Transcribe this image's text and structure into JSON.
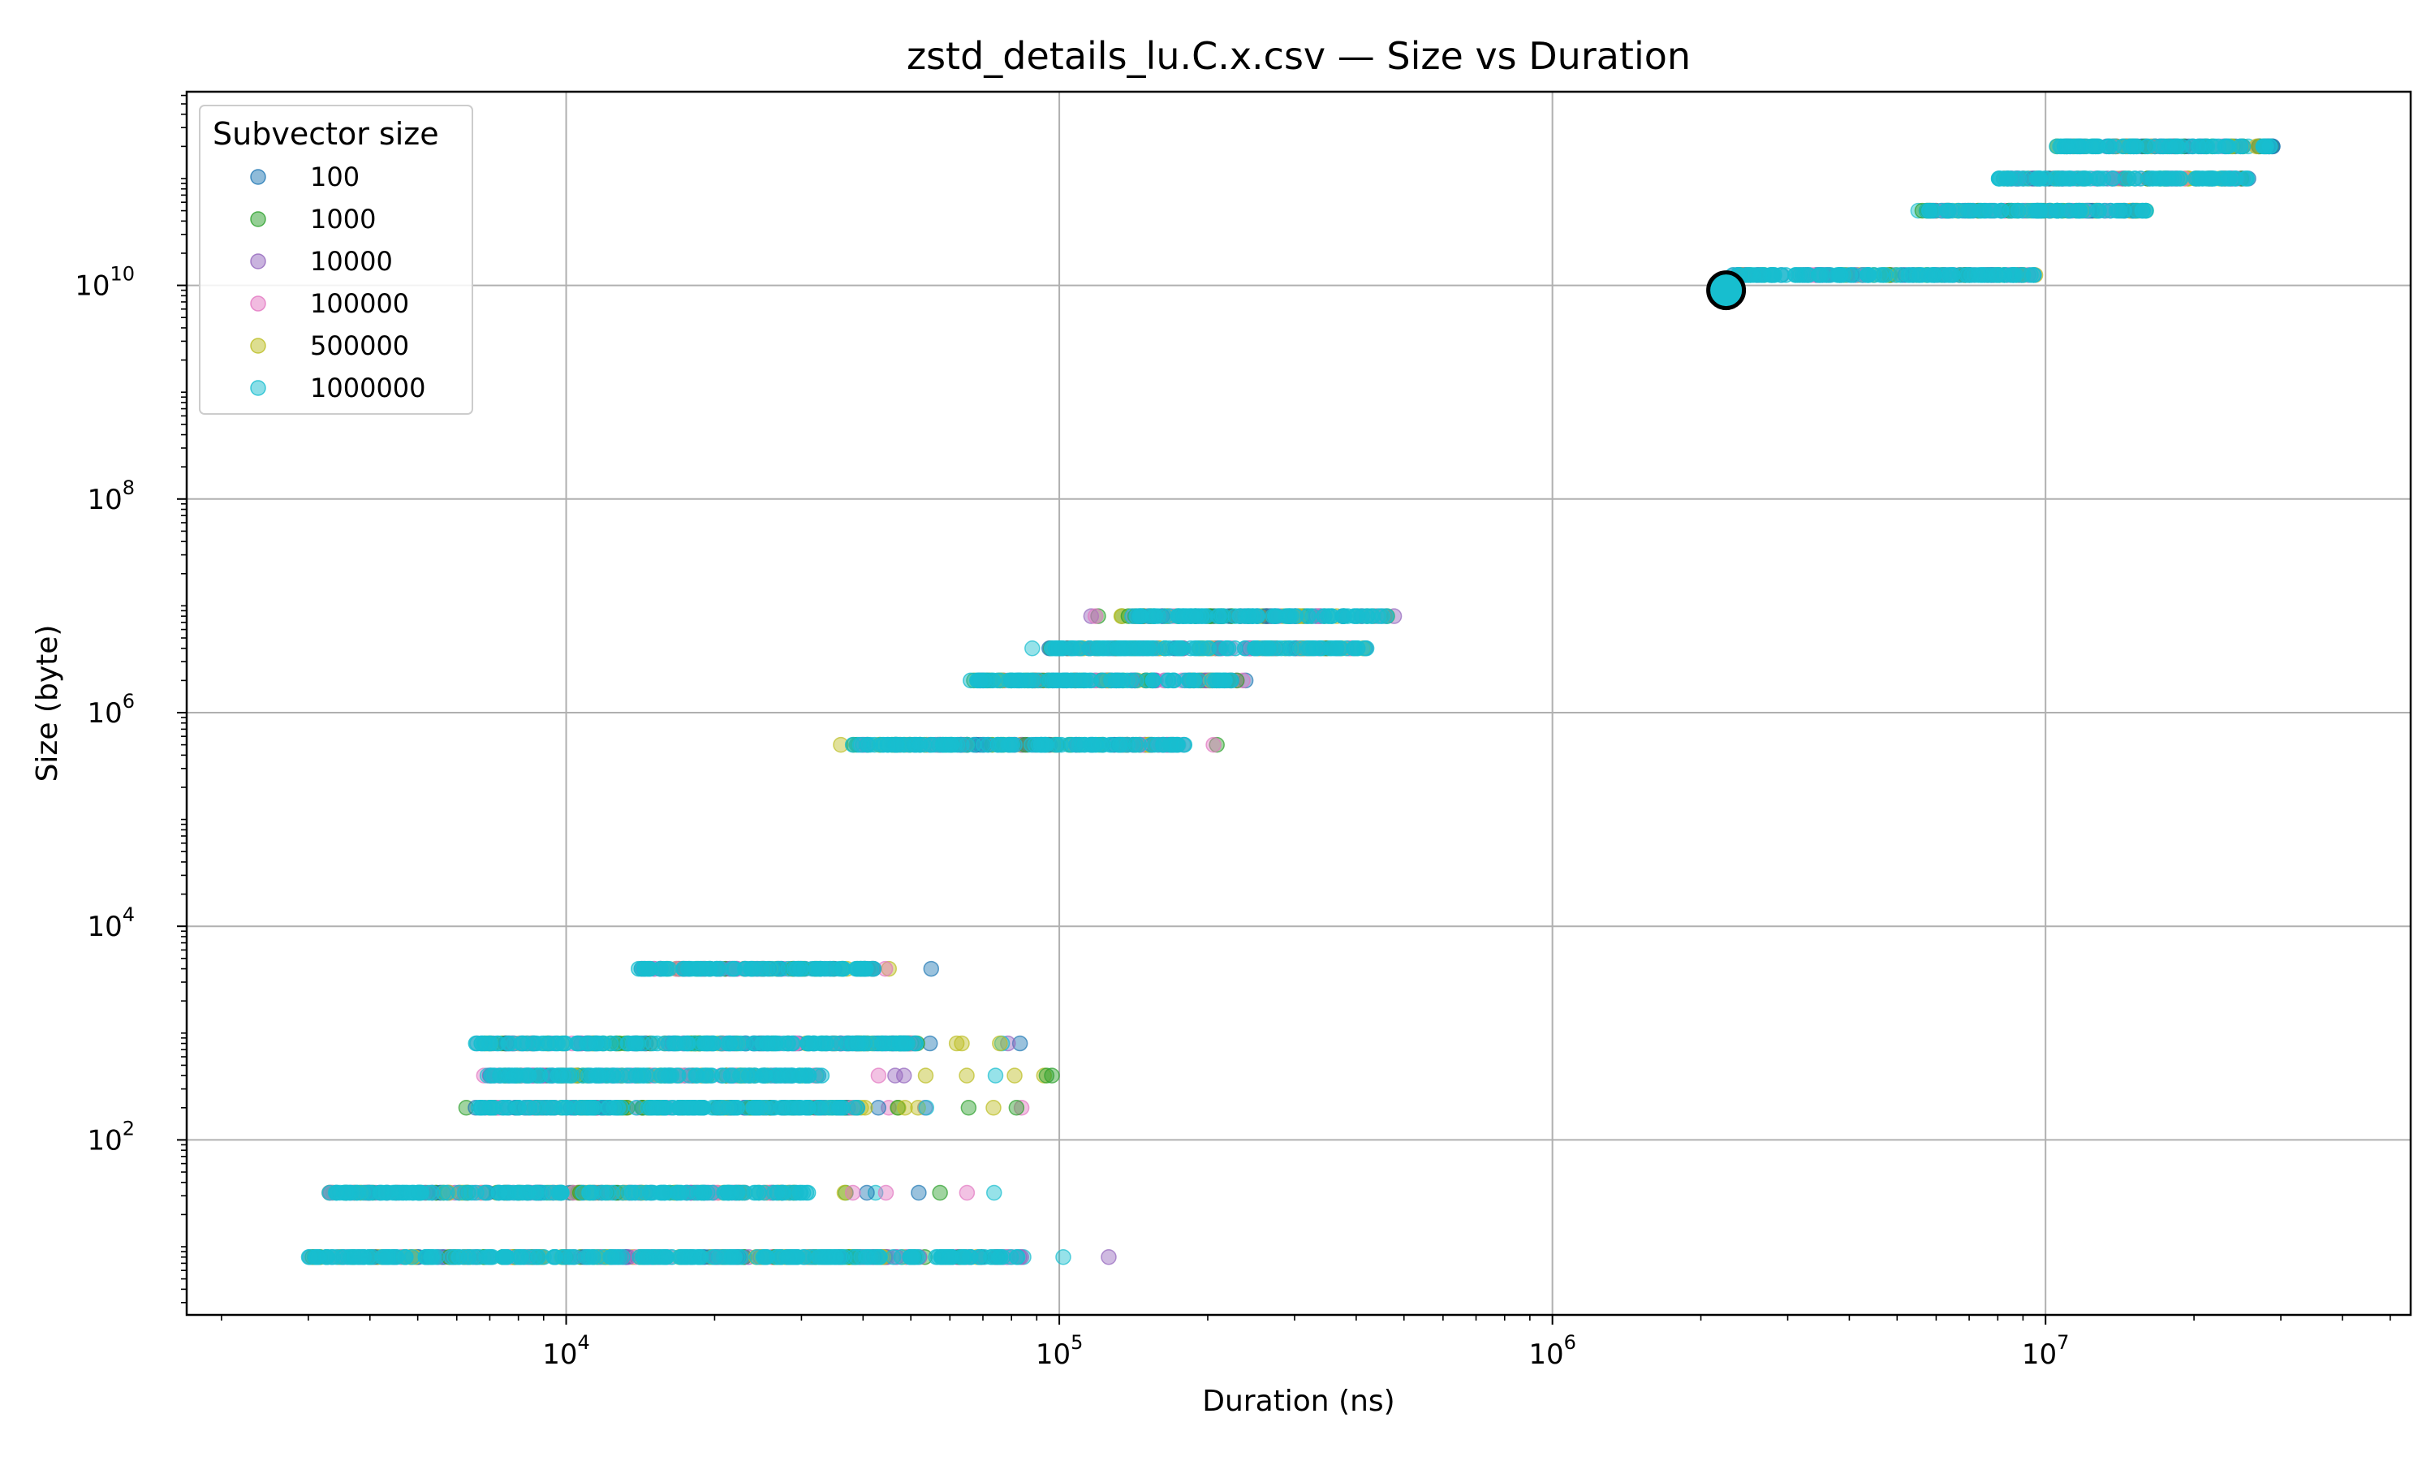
{
  "chart_data": {
    "type": "scatter",
    "title": "zstd_details_lu.C.x.csv — Size vs Duration",
    "xlabel": "Duration (ns)",
    "ylabel": "Size (byte)",
    "xscale": "log",
    "yscale": "log",
    "xlim": [
      1700,
      55000000
    ],
    "ylim": [
      2.3,
      650000000000
    ],
    "xticks": [
      {
        "value": 10000,
        "base": "10",
        "exp": "4"
      },
      {
        "value": 100000,
        "base": "10",
        "exp": "5"
      },
      {
        "value": 1000000,
        "base": "10",
        "exp": "6"
      },
      {
        "value": 10000000,
        "base": "10",
        "exp": "7"
      }
    ],
    "yticks": [
      {
        "value": 100,
        "base": "10",
        "exp": "2"
      },
      {
        "value": 10000,
        "base": "10",
        "exp": "4"
      },
      {
        "value": 1000000,
        "base": "10",
        "exp": "6"
      },
      {
        "value": 100000000,
        "base": "10",
        "exp": "8"
      },
      {
        "value": 10000000000,
        "base": "10",
        "exp": "10"
      }
    ],
    "grid": true,
    "legend": {
      "title": "Subvector size",
      "placement": "top-left",
      "entries": [
        "100",
        "1000",
        "10000",
        "100000",
        "500000",
        "1000000"
      ]
    },
    "series": [
      {
        "name": "100",
        "color": "#1f77b4"
      },
      {
        "name": "1000",
        "color": "#2ca02c"
      },
      {
        "name": "10000",
        "color": "#9467bd"
      },
      {
        "name": "100000",
        "color": "#e377c2"
      },
      {
        "name": "500000",
        "color": "#bcbd22"
      },
      {
        "name": "1000000",
        "color": "#17becf"
      }
    ],
    "clusters": [
      {
        "size": 8,
        "x_range": [
          2800,
          140000
        ],
        "dense_range": [
          3000,
          85000
        ]
      },
      {
        "size": 32,
        "x_range": [
          3100,
          85000
        ],
        "dense_range": [
          3300,
          31000
        ]
      },
      {
        "size": 200,
        "x_range": [
          6000,
          85000
        ],
        "dense_range": [
          6500,
          40000
        ]
      },
      {
        "size": 400,
        "x_range": [
          6500,
          100000
        ],
        "dense_range": [
          7000,
          33000
        ]
      },
      {
        "size": 800,
        "x_range": [
          6000,
          86000
        ],
        "dense_range": [
          6500,
          52000
        ]
      },
      {
        "size": 4000,
        "x_range": [
          13000,
          55000
        ],
        "dense_range": [
          14000,
          43000
        ]
      },
      {
        "size": 500000,
        "x_range": [
          35000,
          210000
        ],
        "dense_range": [
          38000,
          180000
        ]
      },
      {
        "size": 2000000,
        "x_range": [
          62000,
          240000
        ],
        "dense_range": [
          65000,
          230000
        ]
      },
      {
        "size": 4000000,
        "x_range": [
          88000,
          440000
        ],
        "dense_range": [
          95000,
          420000
        ]
      },
      {
        "size": 8000000,
        "x_range": [
          98000,
          480000
        ],
        "dense_range": [
          140000,
          470000
        ]
      },
      {
        "size": 12500000000,
        "x_range": [
          2100000,
          10500000
        ],
        "dense_range": [
          2300000,
          9500000
        ]
      },
      {
        "size": 50000000000,
        "x_range": [
          5500000,
          16000000
        ],
        "dense_range": [
          5600000,
          16000000
        ]
      },
      {
        "size": 100000000000,
        "x_range": [
          8000000,
          26000000
        ],
        "dense_range": [
          8000000,
          26000000
        ]
      },
      {
        "size": 200000000000,
        "x_range": [
          10500000,
          34000000
        ],
        "dense_range": [
          10500000,
          29000000
        ]
      }
    ],
    "highlight": {
      "x": 2250000,
      "y": 9000000000,
      "color": "#17becf"
    }
  }
}
